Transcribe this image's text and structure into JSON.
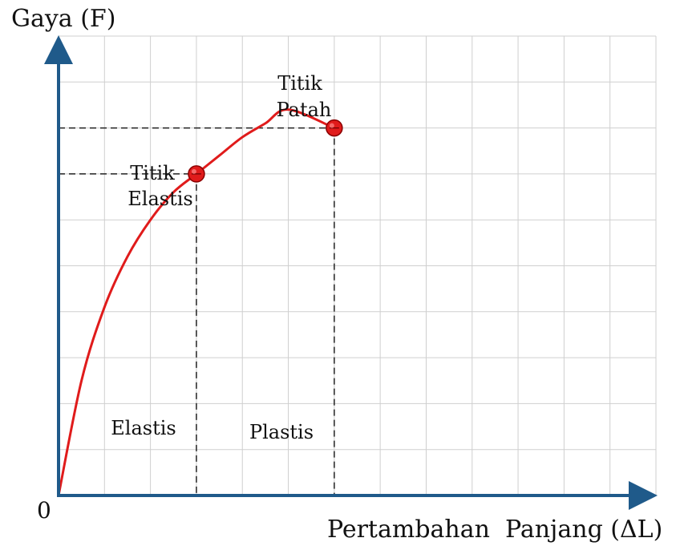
{
  "chart_data": {
    "type": "line",
    "ylabel": "Gaya (F)",
    "xlabel": "Pertambahan  Panjang (ΔL)",
    "origin_label": "0",
    "grid": true,
    "xlim": [
      0,
      13
    ],
    "ylim": [
      0,
      10
    ],
    "series": [
      {
        "points": [
          [
            0,
            0
          ],
          [
            0.5,
            2.5
          ],
          [
            1,
            4.1
          ],
          [
            1.5,
            5.2
          ],
          [
            2,
            6.0
          ],
          [
            2.5,
            6.6
          ],
          [
            3,
            7.0
          ],
          [
            3.5,
            7.4
          ],
          [
            4,
            7.8
          ],
          [
            4.5,
            8.1
          ],
          [
            5,
            8.4
          ],
          [
            6,
            8.0
          ]
        ],
        "color": "#e01b1b"
      }
    ],
    "markers": [
      {
        "x": 3,
        "y": 7,
        "label_line1": "Titik",
        "label_line2": "Elastis"
      },
      {
        "x": 6,
        "y": 8,
        "label_line1": "Titik",
        "label_line2": "Patah"
      }
    ],
    "regions": [
      {
        "label": "Elastis"
      },
      {
        "label": "Plastis"
      }
    ],
    "colors": {
      "axis": "#1f5a8a",
      "curve": "#e01b1b",
      "grid": "#cfcfcf"
    }
  }
}
